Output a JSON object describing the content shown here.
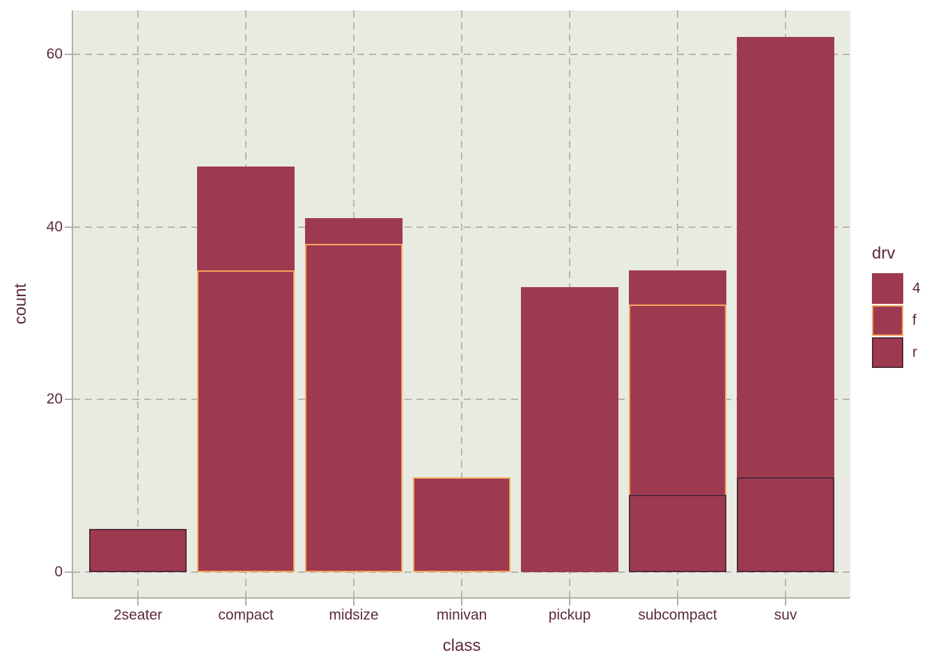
{
  "figure": {
    "background": "#ffffff",
    "panel_background": "#e8ebe2",
    "grid_color": "#b9b5ab",
    "axis_color": "#b3afa5",
    "text_color": "#5c2a3d"
  },
  "chart_data": {
    "type": "bar",
    "stacked": true,
    "title": "",
    "xlabel": "class",
    "ylabel": "count",
    "categories": [
      "2seater",
      "compact",
      "midsize",
      "minivan",
      "pickup",
      "subcompact",
      "suv"
    ],
    "series": [
      {
        "name": "r",
        "values": [
          5,
          0,
          0,
          0,
          0,
          9,
          11
        ],
        "outline": "#55283b"
      },
      {
        "name": "f",
        "values": [
          0,
          35,
          38,
          11,
          0,
          22,
          0
        ],
        "outline": "#f7a55e"
      },
      {
        "name": "4",
        "values": [
          0,
          12,
          3,
          0,
          33,
          4,
          51
        ],
        "outline": "#9e3a50"
      }
    ],
    "totals": [
      5,
      47,
      41,
      11,
      33,
      35,
      62
    ],
    "bar_fill": "#9e3a50",
    "y_ticks": [
      "0",
      "20",
      "40",
      "60"
    ],
    "y_tick_values": [
      0,
      20,
      40,
      60
    ],
    "ylim": [
      -3,
      65
    ],
    "grid": "dashed major gridlines, horizontal and vertical",
    "legend": {
      "title": "drv",
      "position": "right",
      "entries": [
        {
          "label": "4",
          "fill": "#9e3a50",
          "outline": "#9e3a50"
        },
        {
          "label": "f",
          "fill": "#9e3a50",
          "outline": "#f7a55e"
        },
        {
          "label": "r",
          "fill": "#9e3a50",
          "outline": "#55283b"
        }
      ]
    }
  }
}
